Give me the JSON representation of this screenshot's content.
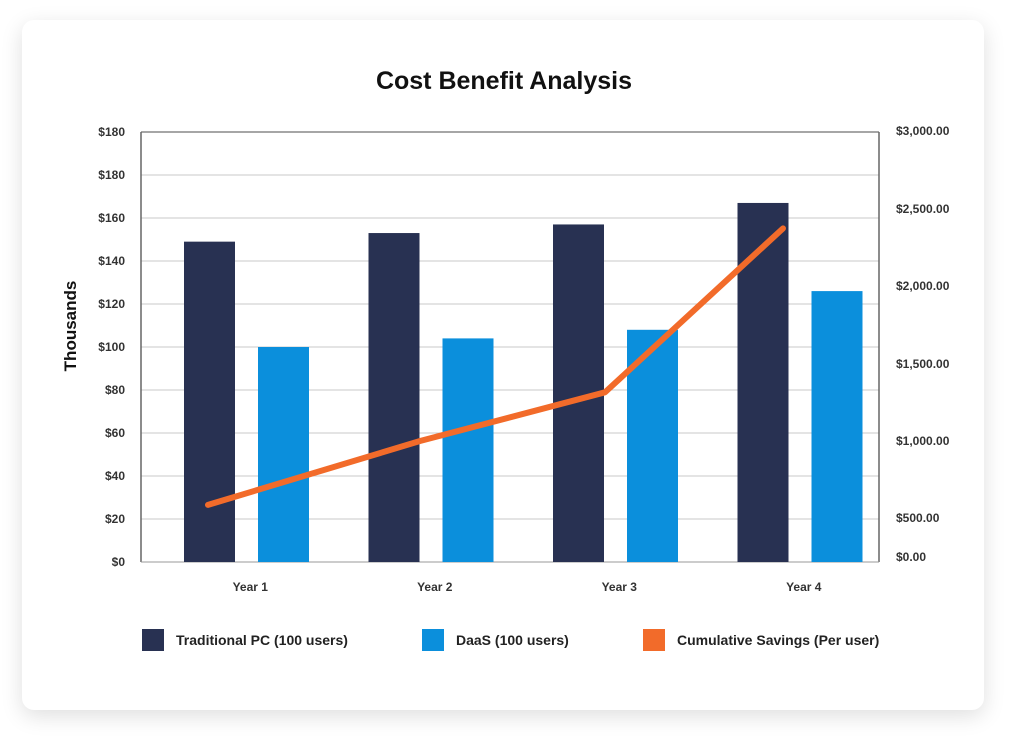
{
  "chart_data": {
    "type": "bar",
    "title": "Cost Benefit Analysis",
    "ylabel": "Thousands",
    "categories": [
      "Year 1",
      "Year 2",
      "Year 3",
      "Year 4"
    ],
    "ylim": [
      0,
      200
    ],
    "y2lim": [
      0,
      3000
    ],
    "left_tick_labels": [
      "$180",
      "$180",
      "$160",
      "$140",
      "$120",
      "$100",
      "$80",
      "$60",
      "$40",
      "$20",
      "$0"
    ],
    "right_tick_labels": [
      "$3,000.00",
      "$2,500.00",
      "$2,000.00",
      "$1,500.00",
      "$1,000.00",
      "$500.00",
      "$0.00"
    ],
    "grid": true,
    "legend_position": "bottom",
    "series": [
      {
        "name": "Traditional PC (100 users)",
        "type": "bar",
        "axis": "left",
        "color": "#283152",
        "values": [
          149,
          153,
          157,
          167
        ]
      },
      {
        "name": "DaaS (100 users)",
        "type": "bar",
        "axis": "left",
        "color": "#0b8fdc",
        "values": [
          100,
          104,
          108,
          126
        ]
      },
      {
        "name": "Cumulative Savings (Per user)",
        "type": "line",
        "axis": "right",
        "color": "#f26b2a",
        "values": [
          585,
          1000,
          1316,
          2374
        ]
      }
    ]
  }
}
